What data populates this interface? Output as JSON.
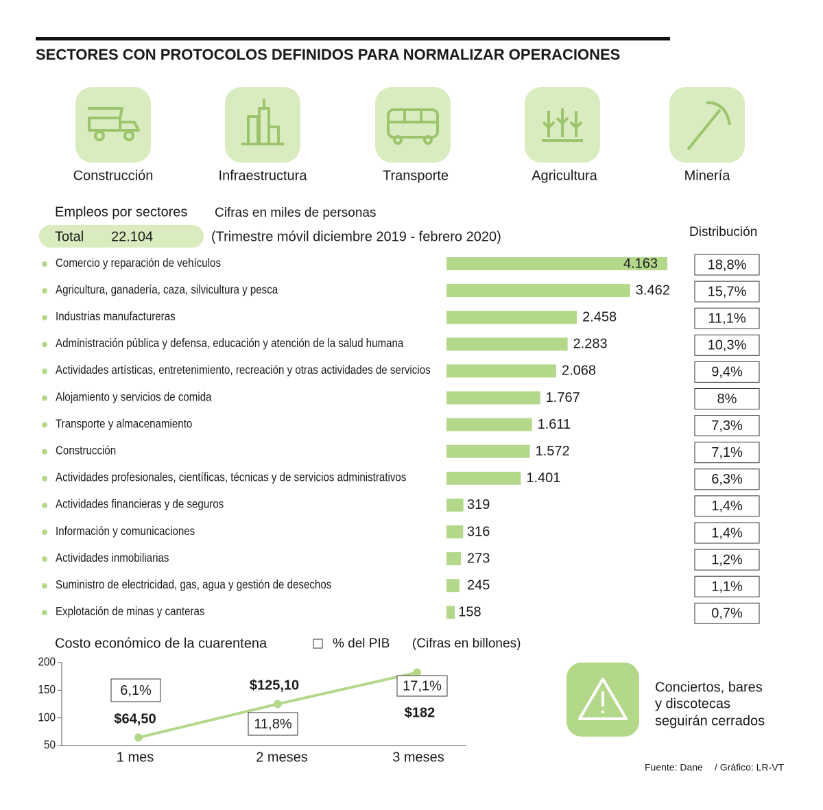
{
  "title": "SECTORES CON PROTOCOLOS DEFINIDOS PARA NORMALIZAR OPERACIONES",
  "sectors": [
    "Construcción",
    "Infraestructura",
    "Transporte",
    "Agricultura",
    "Minería"
  ],
  "chart_data": [
    {
      "type": "bar",
      "title": "Empleos por sectores",
      "subtitle": "Cifras en miles de personas",
      "total_label": "Total",
      "total": "22.104",
      "period": "(Trimestre móvil diciembre 2019 - febrero 2020)",
      "distribution_title": "Distribución",
      "color": "#b3d88a",
      "categories": [
        "Comercio y reparación de vehículos",
        "Agricultura, ganadería, caza, silvicultura y pesca",
        "Industrias manufactureras",
        "Administración pública y defensa, educación y atención de la salud humana",
        "Actividades artísticas, entretenimiento, recreación y otras actividades de servicios",
        "Alojamiento y servicios de comida",
        "Transporte y almacenamiento",
        "Construcción",
        "Actividades profesionales, científicas, técnicas y de servicios administrativos",
        "Actividades financieras y de seguros",
        "Información y comunicaciones",
        "Actividades inmobiliarias",
        "Suministro de electricidad, gas, agua y gestión de desechos",
        "Explotación de minas y canteras"
      ],
      "values": [
        4163,
        3462,
        2458,
        2283,
        2068,
        1767,
        1611,
        1572,
        1401,
        319,
        316,
        273,
        245,
        158
      ],
      "value_labels": [
        "4.163",
        "3.462",
        "2.458",
        "2.283",
        "2.068",
        "1.767",
        "1.611",
        "1.572",
        "1.401",
        "319",
        "316",
        "273",
        "245",
        "158"
      ],
      "distribution": [
        18.8,
        15.7,
        11.1,
        10.3,
        9.4,
        8,
        7.3,
        7.1,
        6.3,
        1.4,
        1.4,
        1.2,
        1.1,
        0.7
      ],
      "distribution_labels": [
        "18,8%",
        "15,7%",
        "11,1%",
        "10,3%",
        "9,4%",
        "8%",
        "7,3%",
        "7,1%",
        "6,3%",
        "1,4%",
        "1,4%",
        "1,2%",
        "1,1%",
        "0,7%"
      ]
    },
    {
      "type": "line",
      "title": "Costo económico de la cuarentena",
      "legend": "% del PIB",
      "subtitle": "(Cifras en billones)",
      "color": "#b3d88a",
      "categories": [
        "1 mes",
        "2 meses",
        "3 meses"
      ],
      "values": [
        64.5,
        125.1,
        182
      ],
      "value_labels": [
        "$64,50",
        "$125,10",
        "$182"
      ],
      "pib": [
        6.1,
        11.8,
        17.1
      ],
      "pib_labels": [
        "6,1%",
        "11,8%",
        "17,1%"
      ],
      "ylim": [
        50,
        200
      ],
      "yticks": [
        50,
        100,
        150,
        200
      ]
    }
  ],
  "notice": [
    "Conciertos, bares",
    "y discotecas",
    "seguirán cerrados"
  ],
  "source": "Fuente: Dane",
  "credit": "/ Gráfico: LR-VT"
}
